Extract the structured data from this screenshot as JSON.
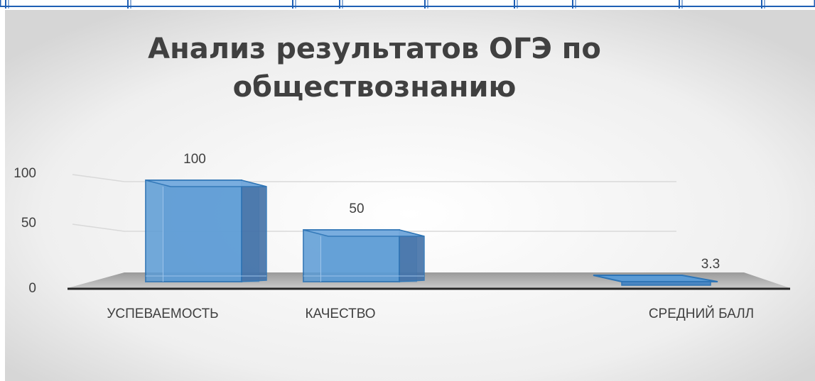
{
  "chart_data": {
    "type": "bar",
    "title_lines": [
      "Анализ результатов ОГЭ по",
      "обществознанию"
    ],
    "categories": [
      "УСПЕВАЕМОСТЬ",
      "КАЧЕСТВО",
      "СРЕДНИЙ БАЛЛ"
    ],
    "values": [
      100,
      50,
      3.3
    ],
    "data_labels": [
      "100",
      "50",
      "3.3"
    ],
    "yticks": [
      "0",
      "50",
      "100"
    ],
    "ylim": [
      0,
      100
    ],
    "grid": true,
    "legend": "none",
    "style": "3d-column",
    "bar_color": "#5b9bd5",
    "bar_edge_color": "#2e75b6",
    "text_color": "#404040"
  },
  "page": {
    "border_color": "#1f5fb4"
  }
}
